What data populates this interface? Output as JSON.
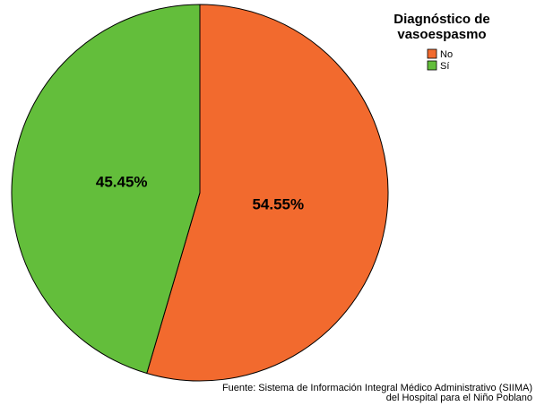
{
  "chart_data": {
    "type": "pie",
    "legend_title": [
      "Diagnóstico de",
      "vasoespasmo"
    ],
    "legend_position": "top-right",
    "slices": [
      {
        "label": "No",
        "value": 54.55,
        "data_label": "54.55%",
        "color": "#F26A2E"
      },
      {
        "label": "Sí",
        "value": 45.45,
        "data_label": "45.45%",
        "color": "#63BE3B"
      }
    ]
  },
  "source": {
    "line1": "Fuente: Sistema de Información Integral Médico Administrativo (SIIMA)",
    "line2": "del Hospital para el Niño Poblano"
  }
}
